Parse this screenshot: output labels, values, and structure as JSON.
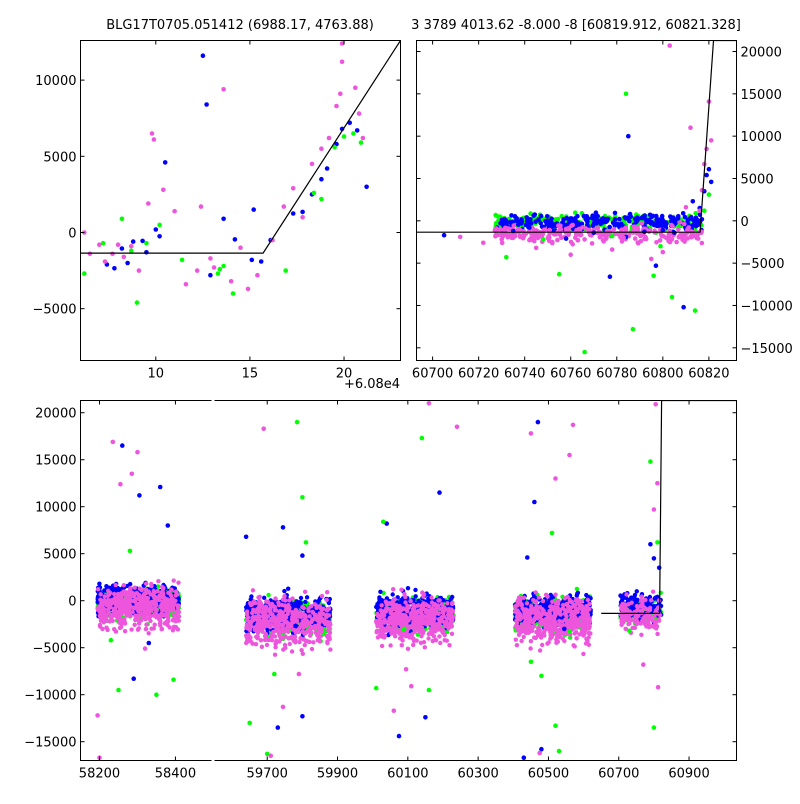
{
  "chart_data": [
    {
      "id": "top_left",
      "type": "scatter",
      "title": "BLG17T0705.051412 (6988.17, 4763.88)",
      "x_offset_label": "+6.08e4",
      "xlim": [
        6,
        23
      ],
      "ylim": [
        -8400,
        12600
      ],
      "xticks": [
        10,
        15,
        20
      ],
      "yticks": [
        -5000,
        0,
        5000,
        10000
      ],
      "ytick_labels": [
        "−5000",
        "0",
        "5000",
        "10000"
      ],
      "model": {
        "x": [
          6,
          15.7,
          23
        ],
        "y": [
          -1350,
          -1350,
          12600
        ]
      },
      "series": [
        {
          "color": "#0000ff",
          "points": [
            [
              7.4,
              -2100
            ],
            [
              7.8,
              -2350
            ],
            [
              8.2,
              -1050
            ],
            [
              8.5,
              -2000
            ],
            [
              8.8,
              -600
            ],
            [
              9.3,
              -550
            ],
            [
              9.5,
              -1300
            ],
            [
              10.0,
              200
            ],
            [
              10.2,
              -250
            ],
            [
              10.5,
              4600
            ],
            [
              12.5,
              11600
            ],
            [
              12.7,
              8400
            ],
            [
              12.9,
              -2800
            ],
            [
              13.6,
              900
            ],
            [
              14.2,
              -450
            ],
            [
              15.1,
              -1800
            ],
            [
              15.2,
              1500
            ],
            [
              15.6,
              -1900
            ],
            [
              16.1,
              -500
            ],
            [
              17.3,
              1250
            ],
            [
              17.8,
              1350
            ],
            [
              18.3,
              2500
            ],
            [
              18.8,
              3500
            ],
            [
              19.1,
              4200
            ],
            [
              19.6,
              5800
            ],
            [
              19.9,
              6800
            ],
            [
              20.3,
              7200
            ],
            [
              20.7,
              6700
            ],
            [
              21.2,
              3000
            ]
          ]
        },
        {
          "color": "#00ff00",
          "points": [
            [
              6.2,
              -2700
            ],
            [
              7.2,
              -700
            ],
            [
              8.2,
              900
            ],
            [
              8.7,
              -1200
            ],
            [
              9.0,
              -4600
            ],
            [
              9.5,
              -700
            ],
            [
              10.2,
              500
            ],
            [
              11.4,
              -1800
            ],
            [
              13.3,
              -2700
            ],
            [
              13.4,
              -2400
            ],
            [
              13.6,
              -2200
            ],
            [
              14.1,
              -4000
            ],
            [
              16.9,
              -2500
            ],
            [
              19.5,
              5600
            ],
            [
              20.0,
              6300
            ],
            [
              20.5,
              6500
            ],
            [
              20.9,
              5900
            ],
            [
              18.8,
              2200
            ],
            [
              18.4,
              2600
            ]
          ]
        },
        {
          "color": "#ee55dd",
          "points": [
            [
              6.2,
              0
            ],
            [
              6.5,
              -1400
            ],
            [
              7.0,
              -800
            ],
            [
              7.3,
              -1900
            ],
            [
              7.7,
              -1400
            ],
            [
              8.0,
              -800
            ],
            [
              8.3,
              -1600
            ],
            [
              8.7,
              -900
            ],
            [
              9.1,
              -2500
            ],
            [
              9.6,
              1900
            ],
            [
              9.8,
              6500
            ],
            [
              9.9,
              6100
            ],
            [
              10.4,
              2800
            ],
            [
              11.0,
              1400
            ],
            [
              11.6,
              -3400
            ],
            [
              12.2,
              -2500
            ],
            [
              12.4,
              1700
            ],
            [
              12.9,
              -1700
            ],
            [
              13.1,
              -2300
            ],
            [
              13.6,
              9400
            ],
            [
              14.0,
              -3200
            ],
            [
              14.5,
              -1000
            ],
            [
              14.9,
              -3700
            ],
            [
              15.4,
              -2800
            ],
            [
              16.2,
              -500
            ],
            [
              16.8,
              1700
            ],
            [
              17.3,
              2900
            ],
            [
              17.8,
              1000
            ],
            [
              18.3,
              4500
            ],
            [
              18.8,
              5500
            ],
            [
              19.2,
              6200
            ],
            [
              19.6,
              8300
            ],
            [
              19.8,
              9100
            ],
            [
              19.9,
              11200
            ],
            [
              19.9,
              12400
            ],
            [
              20.0,
              12700
            ],
            [
              20.6,
              9500
            ],
            [
              20.8,
              7800
            ],
            [
              21.0,
              6200
            ]
          ]
        }
      ]
    },
    {
      "id": "top_right",
      "type": "scatter",
      "title": "3 3789 4013.62 -8.000 -8 [60819.912, 60821.328]",
      "xlim": [
        60693,
        60832
      ],
      "ylim": [
        -16500,
        21300
      ],
      "xticks": [
        60700,
        60720,
        60740,
        60760,
        60780,
        60800,
        60820
      ],
      "yticks": [
        -15000,
        -10000,
        -5000,
        0,
        5000,
        10000,
        15000,
        20000
      ],
      "ytick_labels": [
        "−15000",
        "−10000",
        "−5000",
        "0",
        "5000",
        "10000",
        "15000",
        "20000"
      ],
      "model": {
        "x": [
          60693,
          60816.2,
          60822,
          60832
        ],
        "y": [
          -1350,
          -1350,
          21300,
          21300
        ]
      },
      "series": [
        {
          "color": "#0000ff",
          "points": [
            [
              60705,
              -1700
            ],
            [
              60735,
              -1200
            ],
            [
              60742,
              -800
            ],
            [
              60750,
              0
            ],
            [
              60758,
              -2100
            ],
            [
              60762,
              300
            ],
            [
              60770,
              -1400
            ],
            [
              60777,
              -6600
            ],
            [
              60784,
              -1900
            ],
            [
              60785,
              10000
            ],
            [
              60792,
              -1300
            ],
            [
              60797,
              -5300
            ],
            [
              60800,
              -1100
            ],
            [
              60805,
              -1400
            ],
            [
              60809,
              -10200
            ],
            [
              60813,
              2300
            ],
            [
              60816,
              1500
            ],
            [
              60818,
              3500
            ],
            [
              60819,
              5400
            ],
            [
              60820,
              6100
            ],
            [
              60821,
              4600
            ]
          ]
        },
        {
          "color": "#00ff00",
          "points": [
            [
              60732,
              -4300
            ],
            [
              60748,
              -2200
            ],
            [
              60755,
              -6300
            ],
            [
              60766,
              -15500
            ],
            [
              60778,
              -1800
            ],
            [
              60784,
              15000
            ],
            [
              60787,
              -12800
            ],
            [
              60796,
              -6500
            ],
            [
              60799,
              -3000
            ],
            [
              60804,
              -9000
            ],
            [
              60814,
              -10600
            ],
            [
              60818,
              1200
            ],
            [
              60820,
              3100
            ]
          ]
        },
        {
          "color": "#ee55dd",
          "points": [
            [
              60712,
              -1900
            ],
            [
              60722,
              -2600
            ],
            [
              60730,
              -2200
            ],
            [
              60738,
              -1900
            ],
            [
              60745,
              -3200
            ],
            [
              60752,
              -2500
            ],
            [
              60760,
              -4000
            ],
            [
              60766,
              -2200
            ],
            [
              60774,
              -2300
            ],
            [
              60778,
              -3400
            ],
            [
              60783,
              -2000
            ],
            [
              60788,
              -2100
            ],
            [
              60795,
              -4500
            ],
            [
              60800,
              -3700
            ],
            [
              60803,
              20700
            ],
            [
              60806,
              -2500
            ],
            [
              60810,
              1600
            ],
            [
              60812,
              11000
            ],
            [
              60816,
              1200
            ],
            [
              60817,
              3600
            ],
            [
              60818,
              6700
            ],
            [
              60819,
              8500
            ],
            [
              60820,
              14100
            ],
            [
              60821,
              9500
            ]
          ]
        }
      ]
    },
    {
      "id": "bottom",
      "type": "scatter",
      "title": "",
      "ylim": [
        -17000,
        21300
      ],
      "yticks": [
        -15000,
        -10000,
        -5000,
        0,
        5000,
        10000,
        15000,
        20000
      ],
      "ytick_labels": [
        "−15000",
        "−10000",
        "−5000",
        "0",
        "5000",
        "10000",
        "15000",
        "20000"
      ],
      "segments": [
        {
          "xlim": [
            58150,
            58495
          ],
          "xticks": [
            58200,
            58400
          ]
        },
        {
          "xlim": [
            59550,
            61035
          ],
          "xticks": [
            59700,
            59900,
            60100,
            60300,
            60500,
            60700,
            60900
          ]
        }
      ],
      "model": {
        "x": [
          60650,
          60816.2,
          60822,
          61035
        ],
        "y": [
          -1350,
          -1350,
          21300,
          21300
        ]
      },
      "clusters": [
        {
          "x_range": [
            58195,
            58410
          ],
          "center_y": -700,
          "spread": 1700
        },
        {
          "x_range": [
            59640,
            59880
          ],
          "center_y": -2300,
          "spread": 2000
        },
        {
          "x_range": [
            60010,
            60230
          ],
          "center_y": -2000,
          "spread": 1900
        },
        {
          "x_range": [
            60405,
            60620
          ],
          "center_y": -2000,
          "spread": 1900
        },
        {
          "x_range": [
            60705,
            60822
          ],
          "center_y": -1500,
          "spread": 1500
        }
      ],
      "series": [
        {
          "color": "#0000ff",
          "points": [
            [
              58260,
              16500
            ],
            [
              58305,
              11200
            ],
            [
              58360,
              12100
            ],
            [
              58380,
              8000
            ],
            [
              58290,
              -8300
            ],
            [
              58330,
              -4500
            ],
            [
              59640,
              6800
            ],
            [
              59745,
              7800
            ],
            [
              59800,
              4800
            ],
            [
              59730,
              -13500
            ],
            [
              59800,
              -12300
            ],
            [
              60040,
              8200
            ],
            [
              60075,
              -14400
            ],
            [
              60150,
              -12400
            ],
            [
              60190,
              11500
            ],
            [
              60430,
              -16700
            ],
            [
              60440,
              4600
            ],
            [
              60460,
              10500
            ],
            [
              60470,
              19000
            ],
            [
              60480,
              -15800
            ],
            [
              60545,
              -3000
            ],
            [
              60790,
              6000
            ],
            [
              60800,
              4500
            ],
            [
              60815,
              3500
            ]
          ]
        },
        {
          "color": "#00ff00",
          "points": [
            [
              58230,
              -4200
            ],
            [
              58250,
              -9500
            ],
            [
              58280,
              5300
            ],
            [
              58350,
              -10000
            ],
            [
              58395,
              -8400
            ],
            [
              59650,
              -13000
            ],
            [
              59700,
              -16300
            ],
            [
              59720,
              -7800
            ],
            [
              59785,
              19000
            ],
            [
              59800,
              11000
            ],
            [
              59810,
              6200
            ],
            [
              60010,
              -9300
            ],
            [
              60030,
              8400
            ],
            [
              60090,
              -3000
            ],
            [
              60140,
              17300
            ],
            [
              60160,
              -9500
            ],
            [
              60450,
              -6500
            ],
            [
              60480,
              -8000
            ],
            [
              60510,
              7200
            ],
            [
              60520,
              -13300
            ],
            [
              60530,
              -16000
            ],
            [
              60560,
              -3300
            ],
            [
              60790,
              14800
            ],
            [
              60800,
              -13500
            ],
            [
              60730,
              -3200
            ],
            [
              60810,
              6200
            ]
          ]
        },
        {
          "color": "#ee55dd",
          "points": [
            [
              58195,
              -12200
            ],
            [
              58200,
              -16700
            ],
            [
              58235,
              16900
            ],
            [
              58255,
              12400
            ],
            [
              58285,
              13500
            ],
            [
              58300,
              15800
            ],
            [
              58320,
              -5100
            ],
            [
              58360,
              -2400
            ],
            [
              59690,
              18300
            ],
            [
              59710,
              -16500
            ],
            [
              59745,
              -11300
            ],
            [
              59790,
              -7800
            ],
            [
              60060,
              -11700
            ],
            [
              60095,
              -7300
            ],
            [
              60110,
              -9100
            ],
            [
              60160,
              21000
            ],
            [
              60180,
              -4200
            ],
            [
              60200,
              -3400
            ],
            [
              60240,
              18500
            ],
            [
              60450,
              17800
            ],
            [
              60475,
              -16200
            ],
            [
              60520,
              13000
            ],
            [
              60560,
              15500
            ],
            [
              60570,
              18700
            ],
            [
              60580,
              -4000
            ],
            [
              60720,
              -3000
            ],
            [
              60770,
              -6800
            ],
            [
              60800,
              9700
            ],
            [
              60805,
              20900
            ],
            [
              60810,
              12500
            ],
            [
              60812,
              -9200
            ]
          ]
        }
      ]
    }
  ]
}
